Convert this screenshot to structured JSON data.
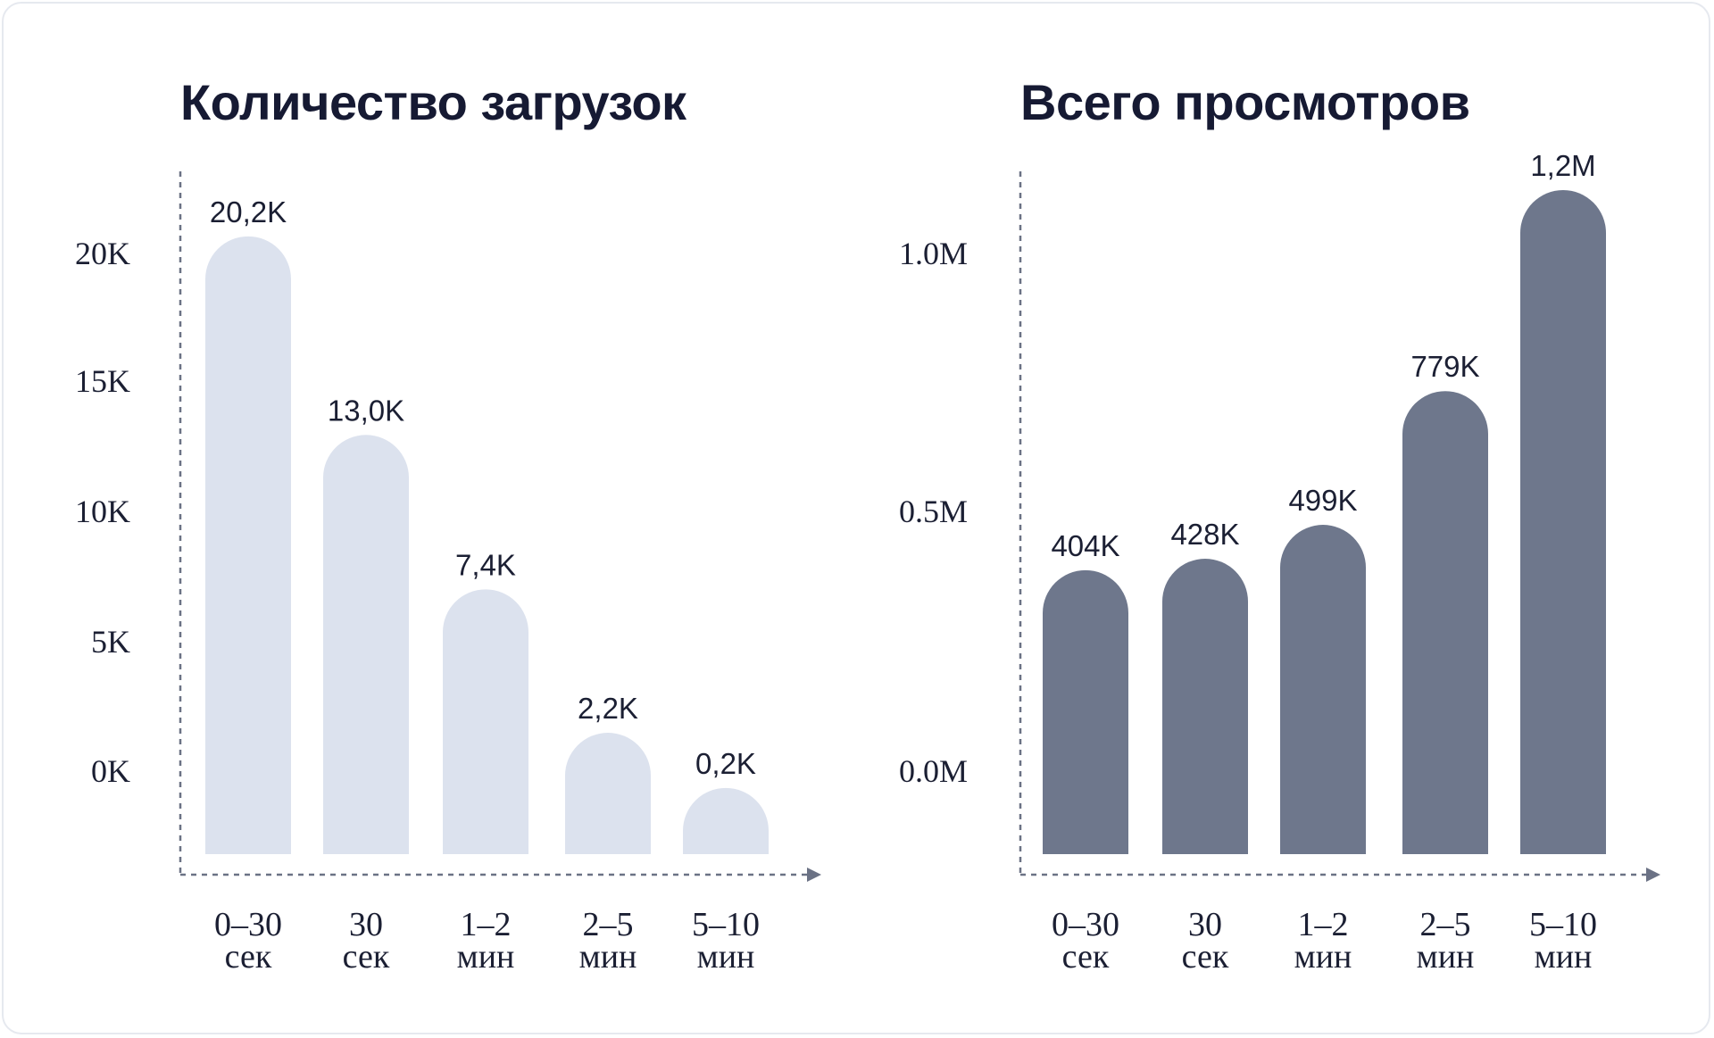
{
  "chart_data": [
    {
      "type": "bar",
      "title": "Количество загрузок",
      "categories": [
        [
          "0–30",
          "сек"
        ],
        [
          "30",
          "сек"
        ],
        [
          "1–2",
          "мин"
        ],
        [
          "2–5",
          "мин"
        ],
        [
          "5–10",
          "мин"
        ]
      ],
      "values": [
        20.2,
        13.0,
        7.4,
        2.2,
        0.2
      ],
      "data_labels": [
        "20,2K",
        "13,0K",
        "7,4K",
        "2,2K",
        "0,2K"
      ],
      "yticks": [
        "20K",
        "15K",
        "10K",
        "5K",
        "0K"
      ],
      "unit": "K",
      "color": "#dce2ee",
      "grid": false
    },
    {
      "type": "bar",
      "title": "Всего просмотров",
      "categories": [
        [
          "0–30",
          "сек"
        ],
        [
          "30",
          "сек"
        ],
        [
          "1–2",
          "мин"
        ],
        [
          "2–5",
          "мин"
        ],
        [
          "5–10",
          "мин"
        ]
      ],
      "values": [
        404,
        428,
        499,
        779,
        1200
      ],
      "data_labels": [
        "404K",
        "428K",
        "499K",
        "779K",
        "1,2M"
      ],
      "yticks": [
        "1.0M",
        "0.5M",
        "0.0M"
      ],
      "unit": "K",
      "color": "#6e778c",
      "grid": false
    }
  ]
}
